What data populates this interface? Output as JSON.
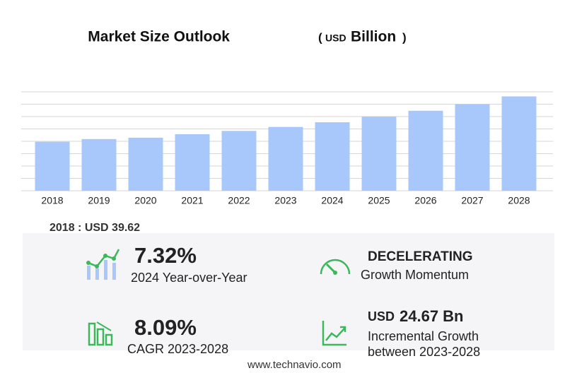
{
  "chart_data": {
    "type": "bar",
    "title": "Market Size Outlook",
    "title_unit_parts": [
      "(",
      "USD",
      "Billion",
      ")"
    ],
    "categories": [
      "2018",
      "2019",
      "2020",
      "2021",
      "2022",
      "2023",
      "2024",
      "2025",
      "2026",
      "2027",
      "2028"
    ],
    "values": [
      39.62,
      41.8,
      42.9,
      45.7,
      48.4,
      51.6,
      55.4,
      59.9,
      64.7,
      70.0,
      76.3
    ],
    "color": "#a8c8fb",
    "ylim": [
      0,
      80
    ],
    "yticks": [
      0,
      10,
      20,
      30,
      40,
      50,
      60,
      70,
      80
    ],
    "ytick_labels": false,
    "grid": true
  },
  "summary": {
    "first_year": "2018 : USD  39.62",
    "yoy": {
      "value": "7.32%",
      "label": "2024 Year-over-Year"
    },
    "momentum": {
      "value": "DECELERATING",
      "label": "Growth Momentum"
    },
    "cagr": {
      "value": "8.09%",
      "label": "CAGR 2023-2028"
    },
    "incremental": {
      "unit": "USD",
      "value": "24.67 Bn",
      "label_1": "Incremental Growth",
      "label_2": "between 2023-2028"
    }
  },
  "footer": "www.technavio.com"
}
